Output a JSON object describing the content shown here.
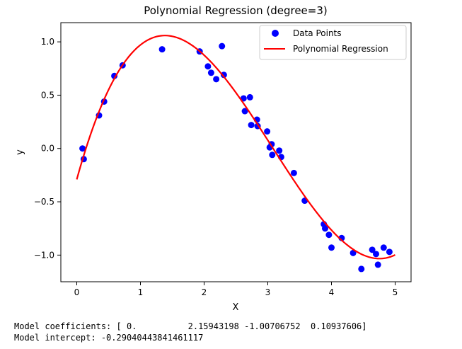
{
  "chart_data": {
    "type": "scatter",
    "title": "Polynomial Regression (degree=3)",
    "xlabel": "X",
    "ylabel": "y",
    "xlim": [
      -0.25,
      5.25
    ],
    "ylim": [
      -1.25,
      1.18
    ],
    "xticks": [
      0,
      1,
      2,
      3,
      4,
      5
    ],
    "yticks": [
      -1.0,
      -0.5,
      0.0,
      0.5,
      1.0
    ],
    "xtick_labels": [
      "0",
      "1",
      "2",
      "3",
      "4",
      "5"
    ],
    "ytick_labels": [
      "−1.0",
      "−0.5",
      "0.0",
      "0.5",
      "1.0"
    ],
    "grid": false,
    "legend_position": "top-right",
    "series": [
      {
        "name": "Data Points",
        "kind": "scatter",
        "color": "#0000ff",
        "x": [
          0.09,
          0.11,
          0.35,
          0.43,
          0.59,
          0.72,
          1.34,
          1.93,
          2.06,
          2.11,
          2.19,
          2.28,
          2.31,
          2.62,
          2.64,
          2.72,
          2.74,
          2.83,
          2.84,
          2.99,
          3.03,
          3.06,
          3.07,
          3.18,
          3.21,
          3.41,
          3.58,
          3.88,
          3.9,
          3.96,
          4.0,
          4.16,
          4.34,
          4.47,
          4.64,
          4.7,
          4.73,
          4.82,
          4.91
        ],
        "y": [
          0.0,
          -0.1,
          0.31,
          0.44,
          0.68,
          0.78,
          0.93,
          0.91,
          0.77,
          0.71,
          0.65,
          0.96,
          0.69,
          0.47,
          0.35,
          0.48,
          0.22,
          0.27,
          0.21,
          0.16,
          0.01,
          0.04,
          -0.06,
          -0.02,
          -0.08,
          -0.23,
          -0.49,
          -0.71,
          -0.75,
          -0.81,
          -0.93,
          -0.84,
          -0.98,
          -1.13,
          -0.95,
          -0.99,
          -1.09,
          -0.93,
          -0.97
        ]
      },
      {
        "name": "Polynomial Regression",
        "kind": "line",
        "color": "#ff0000",
        "intercept": -0.29040443841461117,
        "coefficients": [
          0.0,
          2.15943198,
          -1.00706752,
          0.10937606
        ],
        "x_range": [
          0,
          5
        ]
      }
    ]
  },
  "output": {
    "line1": "Model coefficients: [ 0.          2.15943198 -1.00706752  0.10937606]",
    "line2": "Model intercept: -0.29040443841461117"
  }
}
